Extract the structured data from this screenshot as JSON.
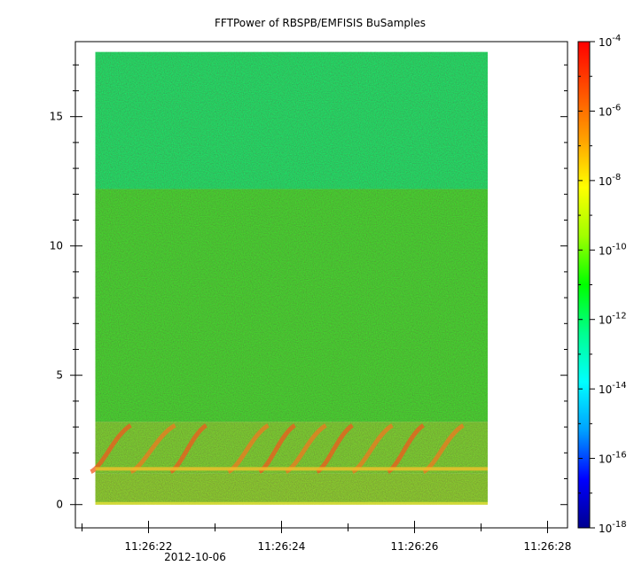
{
  "chart_data": {
    "type": "heatmap",
    "title": "FFTPower of RBSPB/EMFISIS  BuSamples",
    "xlabel": "",
    "ylabel": "",
    "x": {
      "start_time": "11:26:21.2",
      "end_time": "11:26:27.1",
      "axis_min": "11:26:20.9",
      "axis_max": "11:26:28.3",
      "tick_labels": [
        "11:26:22",
        "11:26:24",
        "11:26:26",
        "11:26:28"
      ],
      "date_label": "2012-10-06"
    },
    "y": {
      "ylim": [
        -0.9,
        17.9
      ],
      "ticks": [
        0,
        5,
        10,
        15
      ],
      "data_range": [
        0,
        17.5
      ]
    },
    "colorbar": {
      "scale": "log",
      "range": [
        1e-18,
        0.0001
      ],
      "tick_values": [
        "10^-18",
        "10^-16",
        "10^-14",
        "10^-12",
        "10^-10",
        "10^-8",
        "10^-6",
        "10^-4"
      ],
      "tick_labels": [
        {
          "base": "10",
          "exp": "-18"
        },
        {
          "base": "10",
          "exp": "-16"
        },
        {
          "base": "10",
          "exp": "-14"
        },
        {
          "base": "10",
          "exp": "-12"
        },
        {
          "base": "10",
          "exp": "-10"
        },
        {
          "base": "10",
          "exp": "-8"
        },
        {
          "base": "10",
          "exp": "-6"
        },
        {
          "base": "10",
          "exp": "-4"
        }
      ],
      "colormap": [
        "#000090",
        "#0000ff",
        "#00a0ff",
        "#00ffff",
        "#00ff90",
        "#00ff00",
        "#a0ff00",
        "#ffff00",
        "#ffa000",
        "#ff5000",
        "#ff0000"
      ]
    },
    "bands": [
      {
        "y": [
          12.2,
          17.5
        ],
        "level": "1e-12",
        "color": "#14f46a"
      },
      {
        "y": [
          3.2,
          12.2
        ],
        "level": "1e-10",
        "color": "#3fe82a"
      },
      {
        "y": [
          1.2,
          3.2
        ],
        "level": "1e-9",
        "color": "#7de22a"
      },
      {
        "y": [
          0,
          1.2
        ],
        "level": "1e-9",
        "color": "#8fe028"
      }
    ],
    "grid": false,
    "legend": "colorbar-right"
  }
}
